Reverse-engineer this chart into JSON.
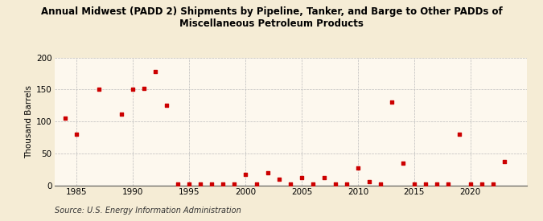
{
  "title_line1": "Annual Midwest (PADD 2) Shipments by Pipeline, Tanker, and Barge to Other PADDs of",
  "title_line2": "Miscellaneous Petroleum Products",
  "ylabel": "Thousand Barrels",
  "source": "Source: U.S. Energy Information Administration",
  "background_color": "#f5ecd5",
  "plot_bg_color": "#fdf8ee",
  "dot_color": "#cc0000",
  "xlim": [
    1983,
    2025
  ],
  "ylim": [
    0,
    200
  ],
  "yticks": [
    0,
    50,
    100,
    150,
    200
  ],
  "xticks": [
    1985,
    1990,
    1995,
    2000,
    2005,
    2010,
    2015,
    2020
  ],
  "data": [
    [
      1984,
      105
    ],
    [
      1985,
      80
    ],
    [
      1987,
      150
    ],
    [
      1989,
      112
    ],
    [
      1990,
      150
    ],
    [
      1991,
      152
    ],
    [
      1992,
      178
    ],
    [
      1993,
      125
    ],
    [
      1994,
      2
    ],
    [
      1995,
      2
    ],
    [
      1996,
      2
    ],
    [
      1997,
      2
    ],
    [
      1998,
      2
    ],
    [
      1999,
      2
    ],
    [
      2000,
      18
    ],
    [
      2001,
      2
    ],
    [
      2002,
      20
    ],
    [
      2003,
      10
    ],
    [
      2004,
      2
    ],
    [
      2005,
      12
    ],
    [
      2006,
      2
    ],
    [
      2007,
      12
    ],
    [
      2008,
      2
    ],
    [
      2009,
      2
    ],
    [
      2010,
      27
    ],
    [
      2011,
      6
    ],
    [
      2012,
      2
    ],
    [
      2013,
      130
    ],
    [
      2014,
      35
    ],
    [
      2015,
      2
    ],
    [
      2016,
      2
    ],
    [
      2017,
      2
    ],
    [
      2018,
      2
    ],
    [
      2019,
      80
    ],
    [
      2020,
      2
    ],
    [
      2021,
      2
    ],
    [
      2022,
      2
    ],
    [
      2023,
      38
    ]
  ]
}
